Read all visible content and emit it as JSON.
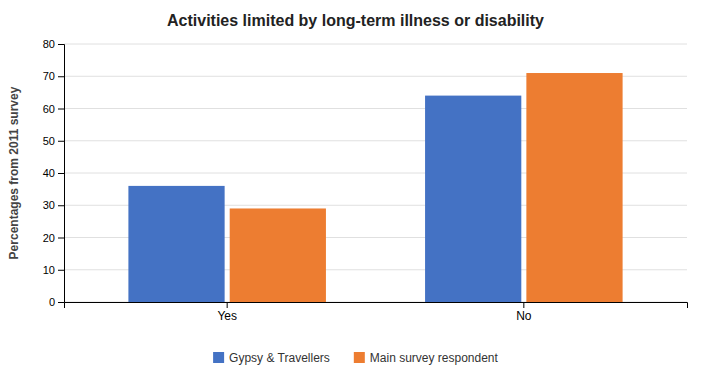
{
  "chart_data": {
    "type": "bar",
    "title": "Activities limited by long-term illness or disability",
    "categories": [
      "Yes",
      "No"
    ],
    "series": [
      {
        "name": "Gypsy & Travellers",
        "color": "#4472C4",
        "values": [
          36,
          64
        ]
      },
      {
        "name": "Main survey respondent",
        "color": "#ED7D31",
        "values": [
          29,
          71
        ]
      }
    ],
    "ylabel": "Percentages from 2011 survey",
    "ylim": [
      0,
      80
    ],
    "yticks": [
      0,
      10,
      20,
      30,
      40,
      50,
      60,
      70,
      80
    ],
    "grid": true,
    "legend": "bottom"
  }
}
